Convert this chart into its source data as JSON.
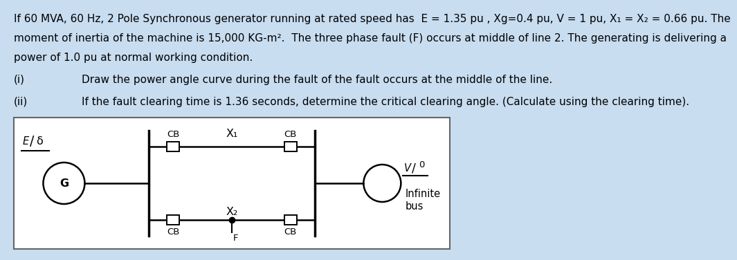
{
  "bg_color": "#c8ddf0",
  "text_color": "#000000",
  "title_line1": "If 60 MVA, 60 Hz, 2 Pole Synchronous generator running at rated speed has  E = 1.35 pu , Xg=0.4 pu, V = 1 pu, X₁ = X₂ = 0.66 pu. The",
  "title_line2": "moment of inertia of the machine is 15,000 KG-m².  The three phase fault (F) occurs at middle of line 2. The generating is delivering a",
  "title_line3": "power of 1.0 pu at normal working condition.",
  "item_i": "(i)",
  "item_i_text": "Draw the power angle curve during the fault of the fault occurs at the middle of the line.",
  "item_ii": "(ii)",
  "item_ii_text": "If the fault clearing time is 1.36 seconds, determine the critical clearing angle. (Calculate using the clearing time).",
  "font_size_text": 11.0,
  "font_size_diagram": 10.5,
  "font_family": "DejaVu Sans"
}
